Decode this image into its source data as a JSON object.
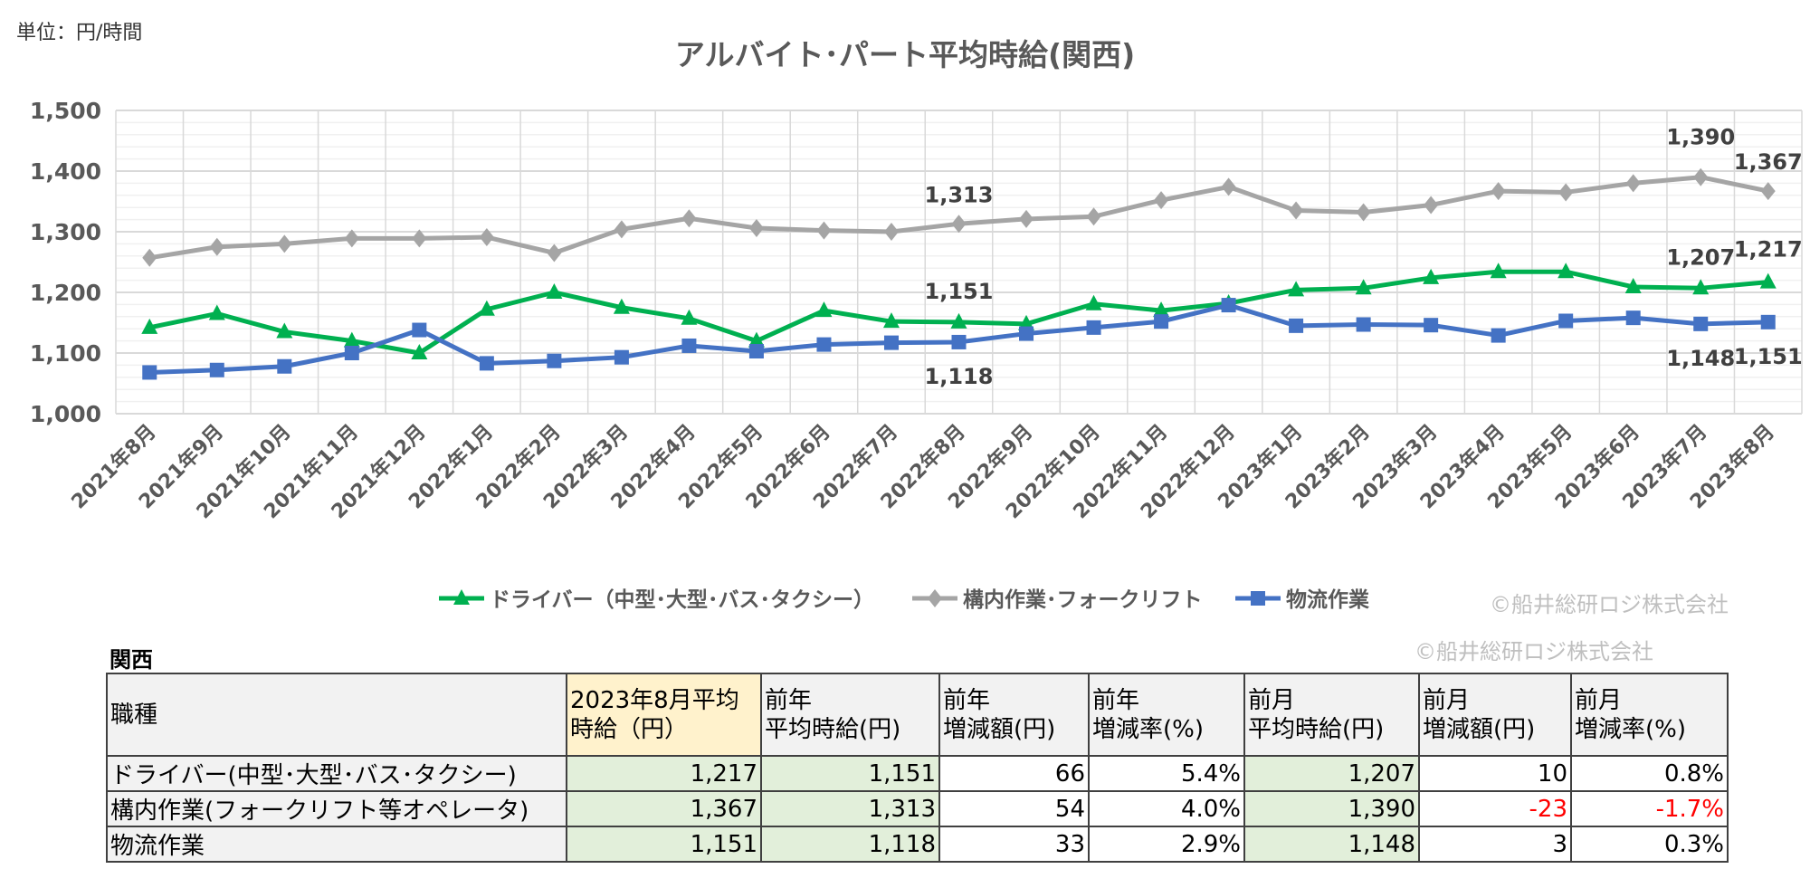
{
  "unit_label": "単位：円/時間",
  "watermark": "©船井総研ロジ株式会社",
  "chart_data": {
    "type": "line",
    "title": "アルバイト･パート平均時給(関西)",
    "xlabel": "",
    "ylabel": "",
    "ylim": [
      1000,
      1500
    ],
    "yticks": [
      1000,
      1100,
      1200,
      1300,
      1400,
      1500
    ],
    "ytick_labels": [
      "1,000",
      "1,100",
      "1,200",
      "1,300",
      "1,400",
      "1,500"
    ],
    "grid": true,
    "legend_position": "bottom",
    "categories": [
      "2021年8月",
      "2021年9月",
      "2021年10月",
      "2021年11月",
      "2021年12月",
      "2022年1月",
      "2022年2月",
      "2022年3月",
      "2022年4月",
      "2022年5月",
      "2022年6月",
      "2022年7月",
      "2022年8月",
      "2022年9月",
      "2022年10月",
      "2022年11月",
      "2022年12月",
      "2023年1月",
      "2023年2月",
      "2023年3月",
      "2023年4月",
      "2023年5月",
      "2023年6月",
      "2023年7月",
      "2023年8月"
    ],
    "series": [
      {
        "name": "ドライバー（中型･大型･バス･タクシー）",
        "color": "#00b050",
        "marker": "triangle",
        "values": [
          1142,
          1165,
          1135,
          1120,
          1100,
          1172,
          1200,
          1175,
          1157,
          1120,
          1170,
          1152,
          1151,
          1148,
          1181,
          1170,
          1182,
          1204,
          1207,
          1224,
          1234,
          1234,
          1209,
          1207,
          1217
        ],
        "data_labels": {
          "12": "1,151",
          "23": "1,207",
          "24": "1,217"
        }
      },
      {
        "name": "構内作業･フォークリフト",
        "color": "#a5a5a5",
        "marker": "diamond",
        "values": [
          1257,
          1275,
          1280,
          1289,
          1289,
          1291,
          1265,
          1304,
          1322,
          1306,
          1302,
          1300,
          1313,
          1321,
          1325,
          1352,
          1374,
          1335,
          1332,
          1344,
          1367,
          1365,
          1380,
          1390,
          1367
        ],
        "data_labels": {
          "12": "1,313",
          "23": "1,390",
          "24": "1,367"
        }
      },
      {
        "name": "物流作業",
        "color": "#4472c4",
        "marker": "square",
        "values": [
          1068,
          1072,
          1078,
          1100,
          1138,
          1083,
          1087,
          1093,
          1112,
          1103,
          1114,
          1117,
          1118,
          1132,
          1142,
          1152,
          1179,
          1145,
          1147,
          1146,
          1129,
          1153,
          1158,
          1148,
          1151
        ],
        "data_labels": {
          "12": "1,118",
          "23": "1,148",
          "24": "1,151"
        }
      }
    ]
  },
  "table": {
    "region": "関西",
    "headers": [
      "職種",
      "2023年8月平均\n時給（円）",
      "前年\n平均時給(円)",
      "前年\n増減額(円)",
      "前年\n増減率(%)",
      "前月\n平均時給(円)",
      "前月\n増減額(円)",
      "前月\n増減率(%)"
    ],
    "rows": [
      [
        "ドライバー(中型･大型･バス･タクシー)",
        "1,217",
        "1,151",
        "66",
        "5.4%",
        "1,207",
        "10",
        "0.8%"
      ],
      [
        "構内作業(フォークリフト等オペレータ)",
        "1,367",
        "1,313",
        "54",
        "4.0%",
        "1,390",
        "-23",
        "-1.7%"
      ],
      [
        "物流作業",
        "1,151",
        "1,118",
        "33",
        "2.9%",
        "1,148",
        "3",
        "0.3%"
      ]
    ]
  }
}
